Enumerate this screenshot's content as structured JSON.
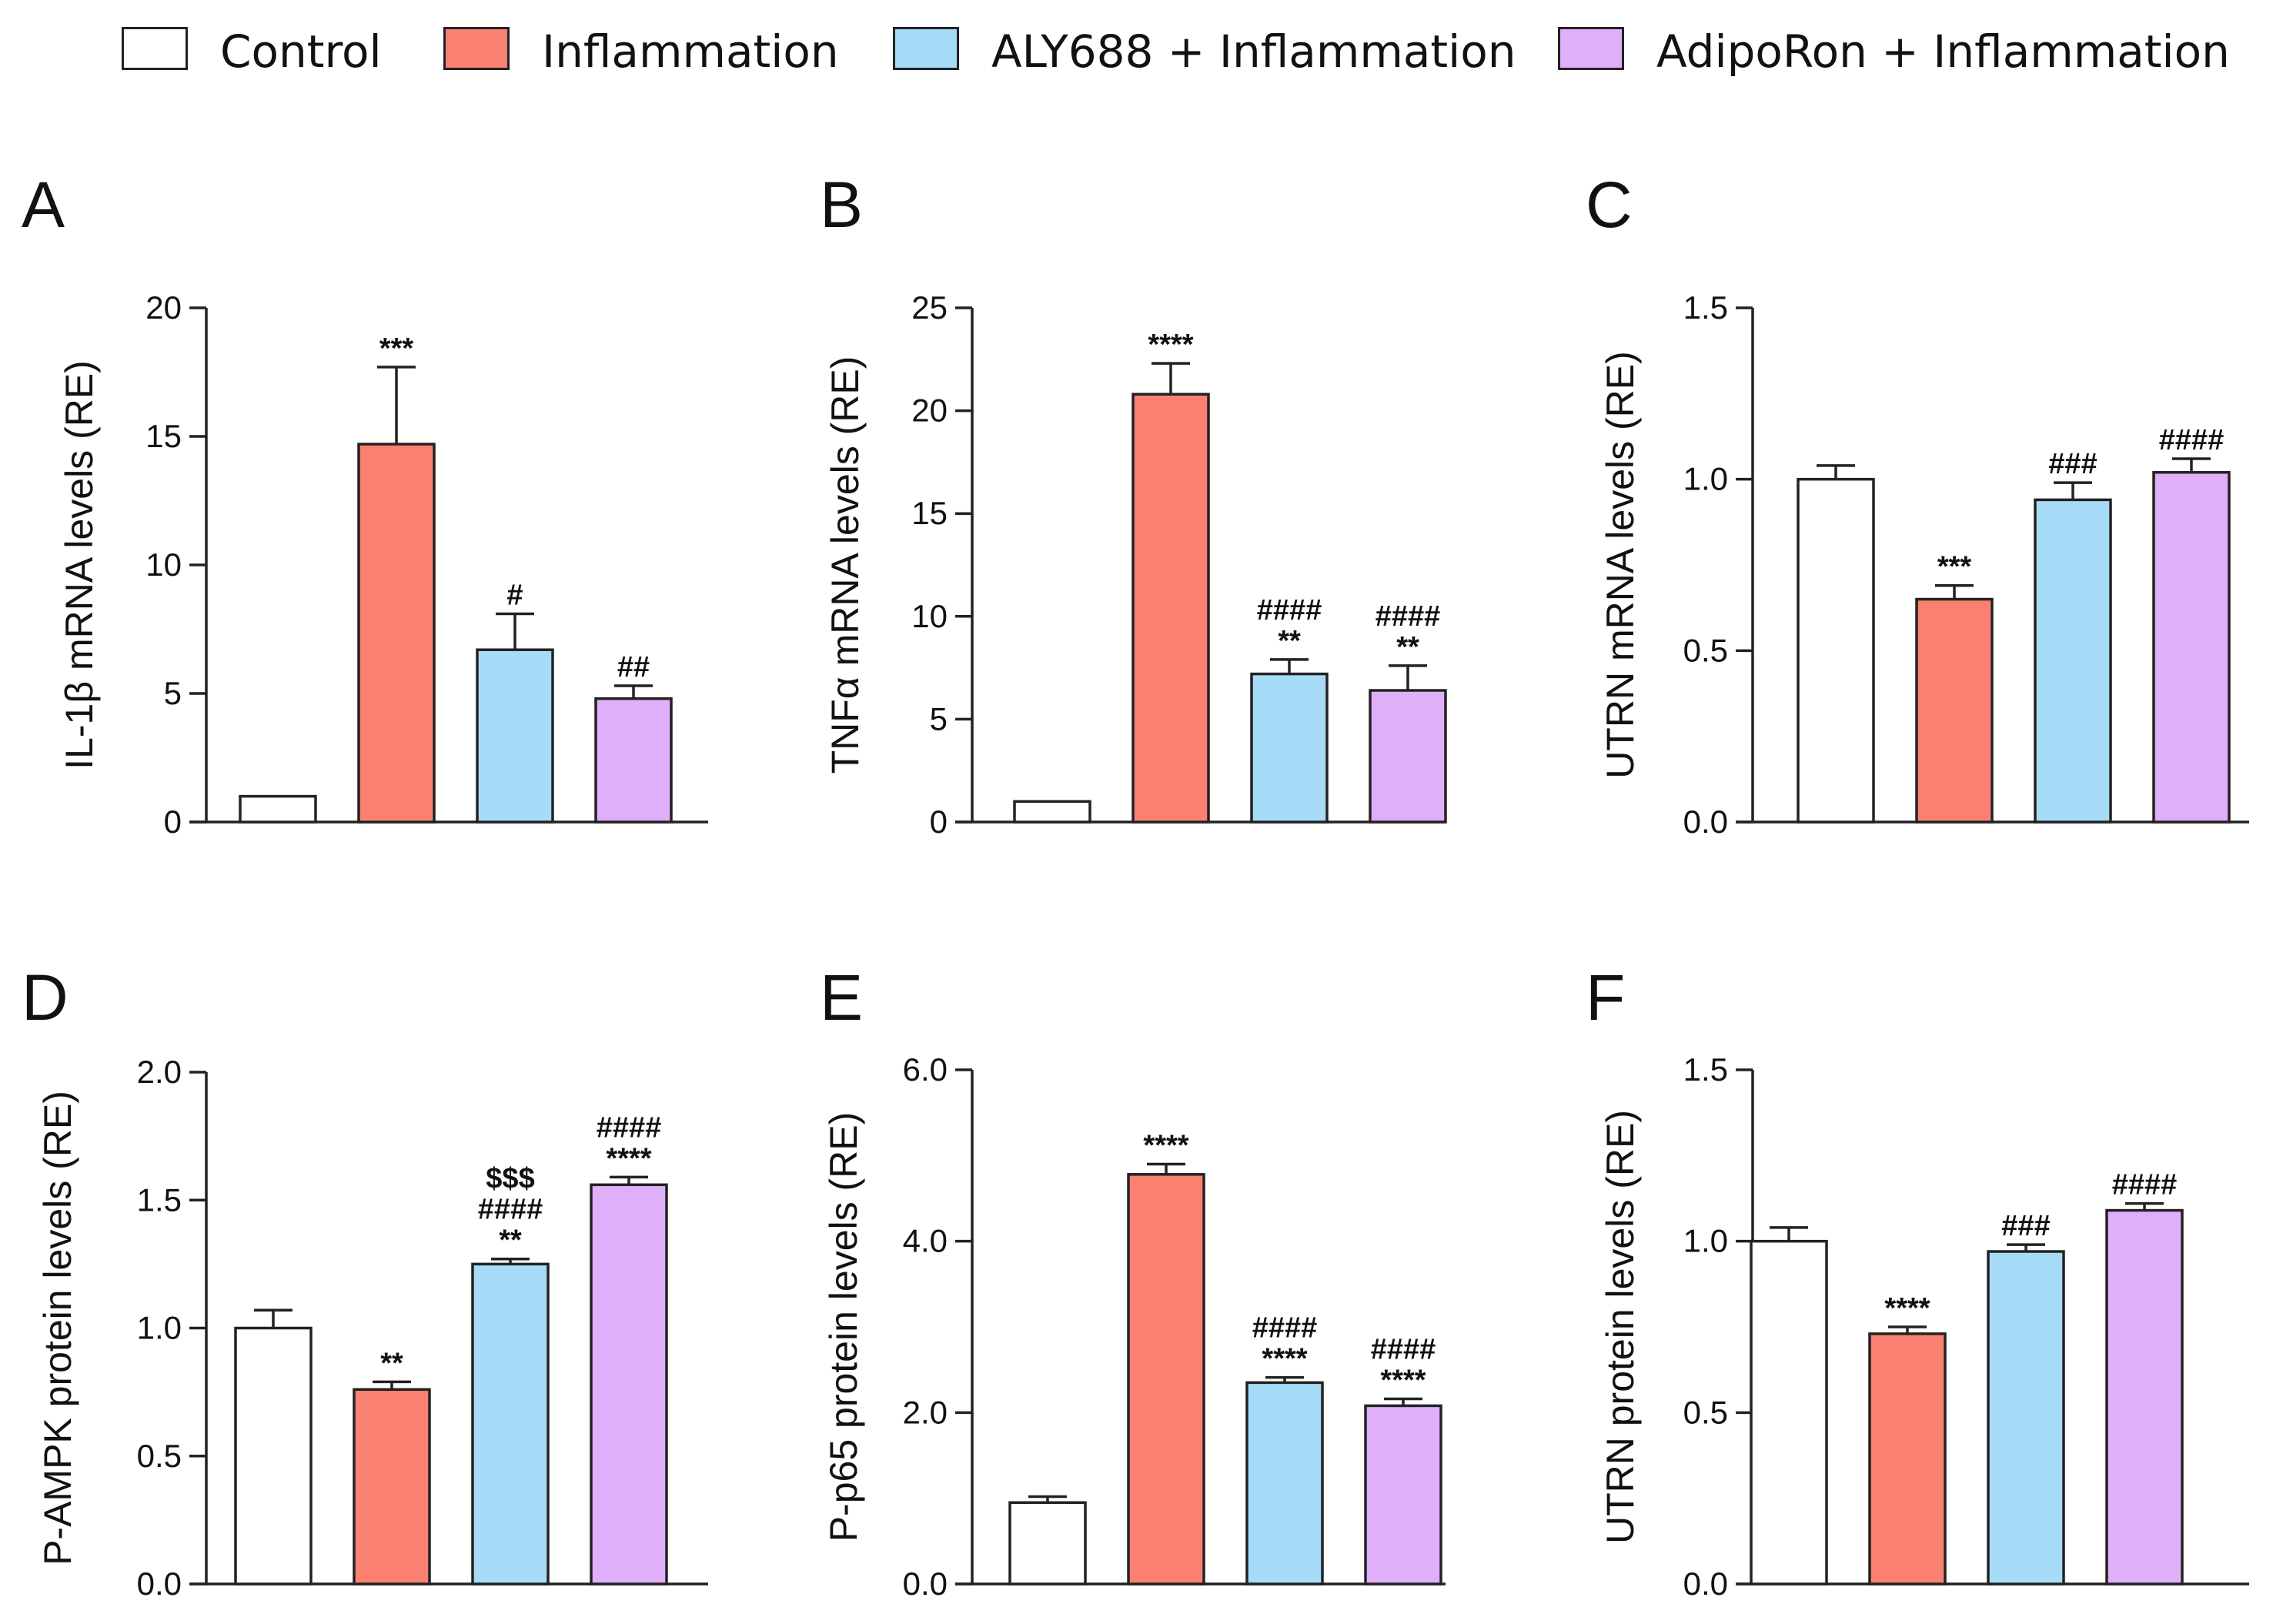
{
  "legend": {
    "items": [
      {
        "label": "Control",
        "color": "#ffffff"
      },
      {
        "label": "Inflammation",
        "color": "#fa8072"
      },
      {
        "label": "ALY688 + Inflammation",
        "color": "#a7dcf8"
      },
      {
        "label": "AdipoRon + Inflammation",
        "color": "#e0aff9"
      }
    ]
  },
  "chart_data": [
    {
      "panel": "A",
      "type": "bar",
      "ylabel": "IL-1β mRNA levels (RE)",
      "ylim": [
        0,
        20
      ],
      "yticks": [
        0,
        5,
        10,
        15,
        20
      ],
      "tick_decimals": 0,
      "categories": [
        "Control",
        "Inflammation",
        "ALY688 + Inflammation",
        "AdipoRon + Inflammation"
      ],
      "values": [
        1.0,
        14.7,
        6.7,
        4.8
      ],
      "errors": [
        0,
        3.0,
        1.4,
        0.5
      ],
      "annotations": [
        [],
        [
          "***"
        ],
        [
          "#"
        ],
        [
          "##"
        ]
      ]
    },
    {
      "panel": "B",
      "type": "bar",
      "ylabel": "TNFα mRNA levels (RE)",
      "ylim": [
        0,
        25
      ],
      "yticks": [
        0,
        5,
        10,
        15,
        20,
        25
      ],
      "tick_decimals": 0,
      "categories": [
        "Control",
        "Inflammation",
        "ALY688 + Inflammation",
        "AdipoRon + Inflammation"
      ],
      "values": [
        1.0,
        20.8,
        7.2,
        6.4
      ],
      "errors": [
        0,
        1.5,
        0.7,
        1.2
      ],
      "annotations": [
        [],
        [
          "****"
        ],
        [
          "####",
          "**"
        ],
        [
          "####",
          "**"
        ]
      ]
    },
    {
      "panel": "C",
      "type": "bar",
      "ylabel": "UTRN mRNA levels (RE)",
      "ylim": [
        0,
        1.5
      ],
      "yticks": [
        0,
        0.5,
        1.0,
        1.5
      ],
      "tick_decimals": 1,
      "categories": [
        "Control",
        "Inflammation",
        "ALY688 + Inflammation",
        "AdipoRon + Inflammation"
      ],
      "values": [
        1.0,
        0.65,
        0.94,
        1.02
      ],
      "errors": [
        0.04,
        0.04,
        0.05,
        0.04
      ],
      "annotations": [
        [],
        [
          "***"
        ],
        [
          "###"
        ],
        [
          "####"
        ]
      ]
    },
    {
      "panel": "D",
      "type": "bar",
      "ylabel": "P-AMPK protein levels (RE)",
      "ylim": [
        0,
        2.0
      ],
      "yticks": [
        0,
        0.5,
        1.0,
        1.5,
        2.0
      ],
      "tick_decimals": 1,
      "categories": [
        "Control",
        "Inflammation",
        "ALY688 + Inflammation",
        "AdipoRon + Inflammation"
      ],
      "values": [
        1.0,
        0.76,
        1.25,
        1.56
      ],
      "errors": [
        0.07,
        0.03,
        0.02,
        0.03
      ],
      "annotations": [
        [],
        [
          "**"
        ],
        [
          "$$$",
          "####",
          "**"
        ],
        [
          "####",
          "****"
        ]
      ]
    },
    {
      "panel": "E",
      "type": "bar",
      "ylabel": "P-p65 protein levels (RE)",
      "ylim": [
        0,
        6.0
      ],
      "yticks": [
        0,
        2.0,
        4.0,
        6.0
      ],
      "tick_decimals": 1,
      "categories": [
        "Control",
        "Inflammation",
        "ALY688 + Inflammation",
        "AdipoRon + Inflammation"
      ],
      "values": [
        0.95,
        4.78,
        2.35,
        2.08
      ],
      "errors": [
        0.07,
        0.12,
        0.06,
        0.08
      ],
      "annotations": [
        [],
        [
          "****"
        ],
        [
          "####",
          "****"
        ],
        [
          "####",
          "****"
        ]
      ]
    },
    {
      "panel": "F",
      "type": "bar",
      "ylabel": "UTRN protein levels (RE)",
      "ylim": [
        0,
        1.5
      ],
      "yticks": [
        0,
        0.5,
        1.0,
        1.5
      ],
      "tick_decimals": 1,
      "categories": [
        "Control",
        "Inflammation",
        "ALY688 + Inflammation",
        "AdipoRon + Inflammation"
      ],
      "values": [
        1.0,
        0.73,
        0.97,
        1.09
      ],
      "errors": [
        0.04,
        0.02,
        0.02,
        0.02
      ],
      "annotations": [
        [],
        [
          "****"
        ],
        [
          "###"
        ],
        [
          "####"
        ]
      ]
    }
  ]
}
